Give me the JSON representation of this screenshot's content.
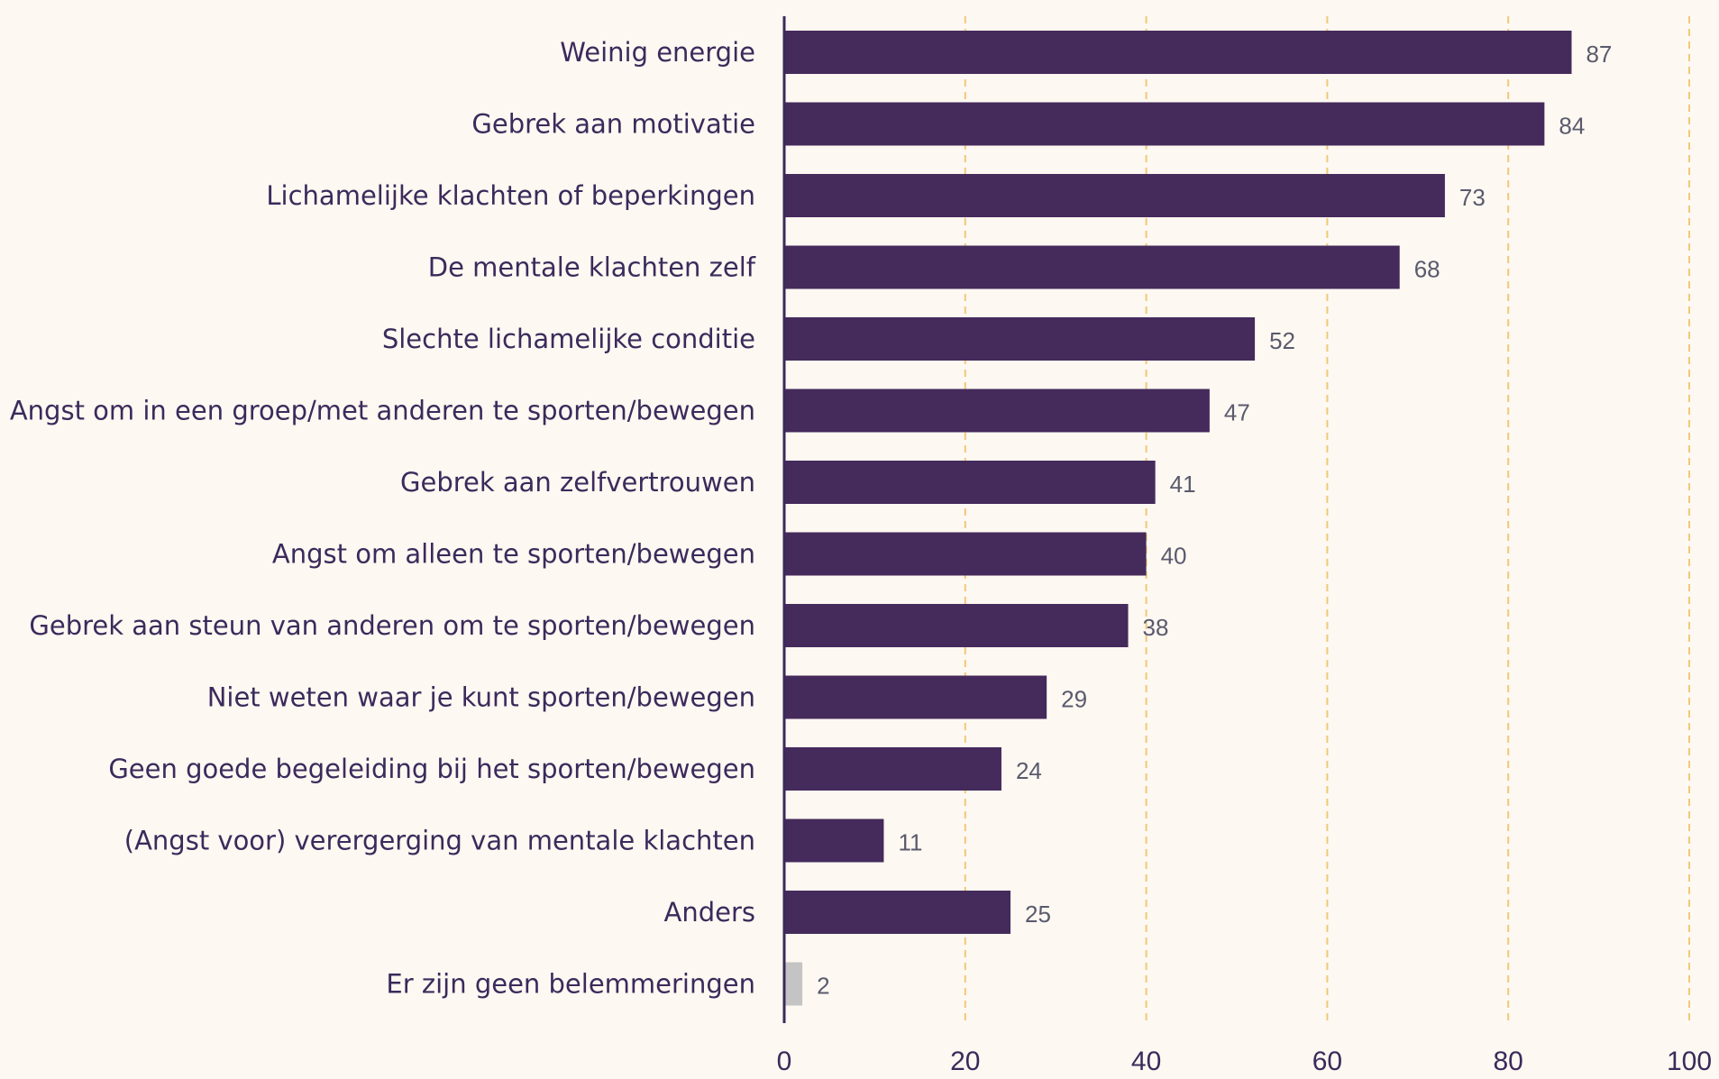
{
  "chart_data": {
    "type": "bar",
    "orientation": "horizontal",
    "categories": [
      "Weinig energie",
      "Gebrek aan motivatie",
      "Lichamelijke klachten of beperkingen",
      "De mentale klachten zelf",
      "Slechte lichamelijke conditie",
      "Angst om in een groep/met anderen te sporten/bewegen",
      "Gebrek aan zelfvertrouwen",
      "Angst om alleen te sporten/bewegen",
      "Gebrek aan steun van anderen om te sporten/bewegen",
      "Niet weten waar je kunt sporten/bewegen",
      "Geen goede begeleiding bij het sporten/bewegen",
      "(Angst voor) verergerging van mentale klachten",
      "Anders",
      "Er zijn geen belemmeringen"
    ],
    "values": [
      87,
      84,
      73,
      68,
      52,
      47,
      41,
      40,
      38,
      29,
      24,
      11,
      25,
      2
    ],
    "data_labels": [
      "87",
      "84",
      "73",
      "68",
      "52",
      "47",
      "41",
      "40",
      "38",
      "29",
      "24",
      "11",
      "25",
      "2"
    ],
    "bar_colors": [
      "#452a5c",
      "#452a5c",
      "#452a5c",
      "#452a5c",
      "#452a5c",
      "#452a5c",
      "#452a5c",
      "#452a5c",
      "#452a5c",
      "#452a5c",
      "#452a5c",
      "#452a5c",
      "#452a5c",
      "#c4c4c4"
    ],
    "xlim": [
      0,
      100
    ],
    "xticks": [
      0,
      20,
      40,
      60,
      80,
      100
    ],
    "xtick_labels": [
      "0",
      "20",
      "40",
      "60",
      "80",
      "100"
    ],
    "grid": "vertical dashed",
    "grid_color": "#f2c879",
    "axis_color": "#3b2a5c",
    "background": "#fdf8f1",
    "title": "",
    "xlabel": "",
    "ylabel": ""
  }
}
